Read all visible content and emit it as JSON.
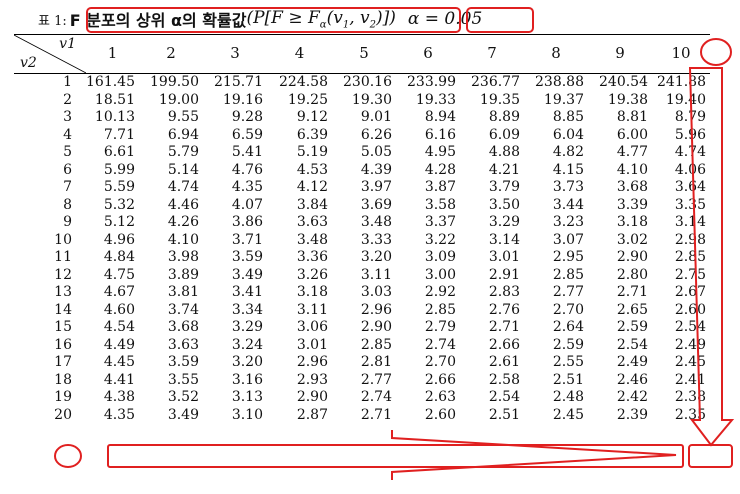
{
  "caption": {
    "label": "표 1:",
    "title": "F 분포의 상위 α의 확률값",
    "formula_open": "(P[F ≥ F",
    "formula_sub": "α",
    "formula_mid": "(v",
    "formula_s1": "1",
    "formula_comma": ", v",
    "formula_s2": "2",
    "formula_close": ")])",
    "alpha": "α = 0.05"
  },
  "table": {
    "col_header": "v1",
    "row_header": "v2",
    "columns": [
      "1",
      "2",
      "3",
      "4",
      "5",
      "6",
      "7",
      "8",
      "9",
      "10"
    ],
    "rows": [
      {
        "v2": "1",
        "values": [
          "161.45",
          "199.50",
          "215.71",
          "224.58",
          "230.16",
          "233.99",
          "236.77",
          "238.88",
          "240.54",
          "241.88"
        ]
      },
      {
        "v2": "2",
        "values": [
          "18.51",
          "19.00",
          "19.16",
          "19.25",
          "19.30",
          "19.33",
          "19.35",
          "19.37",
          "19.38",
          "19.40"
        ]
      },
      {
        "v2": "3",
        "values": [
          "10.13",
          "9.55",
          "9.28",
          "9.12",
          "9.01",
          "8.94",
          "8.89",
          "8.85",
          "8.81",
          "8.79"
        ]
      },
      {
        "v2": "4",
        "values": [
          "7.71",
          "6.94",
          "6.59",
          "6.39",
          "6.26",
          "6.16",
          "6.09",
          "6.04",
          "6.00",
          "5.96"
        ]
      },
      {
        "v2": "5",
        "values": [
          "6.61",
          "5.79",
          "5.41",
          "5.19",
          "5.05",
          "4.95",
          "4.88",
          "4.82",
          "4.77",
          "4.74"
        ]
      },
      {
        "v2": "6",
        "values": [
          "5.99",
          "5.14",
          "4.76",
          "4.53",
          "4.39",
          "4.28",
          "4.21",
          "4.15",
          "4.10",
          "4.06"
        ]
      },
      {
        "v2": "7",
        "values": [
          "5.59",
          "4.74",
          "4.35",
          "4.12",
          "3.97",
          "3.87",
          "3.79",
          "3.73",
          "3.68",
          "3.64"
        ]
      },
      {
        "v2": "8",
        "values": [
          "5.32",
          "4.46",
          "4.07",
          "3.84",
          "3.69",
          "3.58",
          "3.50",
          "3.44",
          "3.39",
          "3.35"
        ]
      },
      {
        "v2": "9",
        "values": [
          "5.12",
          "4.26",
          "3.86",
          "3.63",
          "3.48",
          "3.37",
          "3.29",
          "3.23",
          "3.18",
          "3.14"
        ]
      },
      {
        "v2": "10",
        "values": [
          "4.96",
          "4.10",
          "3.71",
          "3.48",
          "3.33",
          "3.22",
          "3.14",
          "3.07",
          "3.02",
          "2.98"
        ]
      },
      {
        "v2": "11",
        "values": [
          "4.84",
          "3.98",
          "3.59",
          "3.36",
          "3.20",
          "3.09",
          "3.01",
          "2.95",
          "2.90",
          "2.85"
        ]
      },
      {
        "v2": "12",
        "values": [
          "4.75",
          "3.89",
          "3.49",
          "3.26",
          "3.11",
          "3.00",
          "2.91",
          "2.85",
          "2.80",
          "2.75"
        ]
      },
      {
        "v2": "13",
        "values": [
          "4.67",
          "3.81",
          "3.41",
          "3.18",
          "3.03",
          "2.92",
          "2.83",
          "2.77",
          "2.71",
          "2.67"
        ]
      },
      {
        "v2": "14",
        "values": [
          "4.60",
          "3.74",
          "3.34",
          "3.11",
          "2.96",
          "2.85",
          "2.76",
          "2.70",
          "2.65",
          "2.60"
        ]
      },
      {
        "v2": "15",
        "values": [
          "4.54",
          "3.68",
          "3.29",
          "3.06",
          "2.90",
          "2.79",
          "2.71",
          "2.64",
          "2.59",
          "2.54"
        ]
      },
      {
        "v2": "16",
        "values": [
          "4.49",
          "3.63",
          "3.24",
          "3.01",
          "2.85",
          "2.74",
          "2.66",
          "2.59",
          "2.54",
          "2.49"
        ]
      },
      {
        "v2": "17",
        "values": [
          "4.45",
          "3.59",
          "3.20",
          "2.96",
          "2.81",
          "2.70",
          "2.61",
          "2.55",
          "2.49",
          "2.45"
        ]
      },
      {
        "v2": "18",
        "values": [
          "4.41",
          "3.55",
          "3.16",
          "2.93",
          "2.77",
          "2.66",
          "2.58",
          "2.51",
          "2.46",
          "2.41"
        ]
      },
      {
        "v2": "19",
        "values": [
          "4.38",
          "3.52",
          "3.13",
          "2.90",
          "2.74",
          "2.63",
          "2.54",
          "2.48",
          "2.42",
          "2.38"
        ]
      },
      {
        "v2": "20",
        "values": [
          "4.35",
          "3.49",
          "3.10",
          "2.87",
          "2.71",
          "2.60",
          "2.51",
          "2.45",
          "2.39",
          "2.35"
        ]
      }
    ]
  },
  "annotation": {
    "color": "#e02020"
  }
}
